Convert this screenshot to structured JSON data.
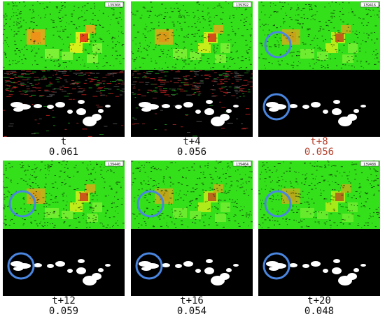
{
  "colors": {
    "grass": "#33e01a",
    "grass_light": "#8af23a",
    "hot_yellow": "#f4f21a",
    "hot_orange": "#f2a21a",
    "hot_red": "#e8231a",
    "blob": "#ffffff",
    "background": "#000000",
    "circle": "#4a86e0",
    "highlight_text": "#b5412c"
  },
  "frames": [
    {
      "id": "f0",
      "time": "t",
      "score": "0.061",
      "frame_number": "139368",
      "highlight": false,
      "circle": false,
      "noisy_mask": true,
      "heat_level": 1.0
    },
    {
      "id": "f1",
      "time": "t+4",
      "score": "0.056",
      "frame_number": "139392",
      "highlight": false,
      "circle": false,
      "noisy_mask": true,
      "heat_level": 0.9
    },
    {
      "id": "f2",
      "time": "t+8",
      "score": "0.056",
      "frame_number": "139416",
      "highlight": true,
      "circle": true,
      "noisy_mask": false,
      "heat_level": 0.8
    },
    {
      "id": "f3",
      "time": "t+12",
      "score": "0.059",
      "frame_number": "139440",
      "highlight": false,
      "circle": true,
      "noisy_mask": false,
      "heat_level": 0.85
    },
    {
      "id": "f4",
      "time": "t+16",
      "score": "0.054",
      "frame_number": "139464",
      "highlight": false,
      "circle": true,
      "noisy_mask": false,
      "heat_level": 0.75
    },
    {
      "id": "f5",
      "time": "t+20",
      "score": "0.048",
      "frame_number": "139488",
      "highlight": false,
      "circle": true,
      "noisy_mask": false,
      "heat_level": 0.7
    }
  ]
}
